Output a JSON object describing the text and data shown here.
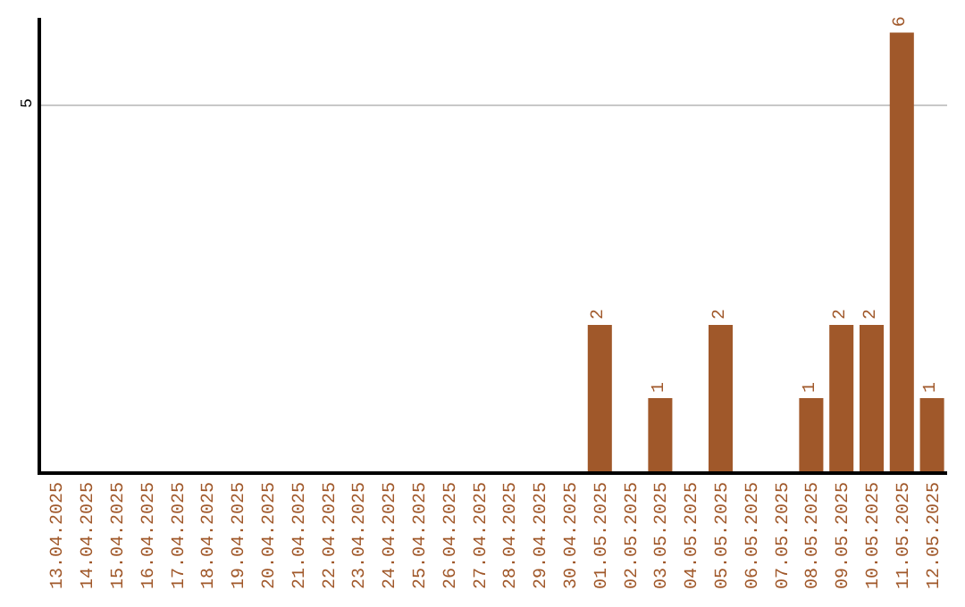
{
  "chart_data": {
    "type": "bar",
    "categories": [
      "13.04.2025",
      "14.04.2025",
      "15.04.2025",
      "16.04.2025",
      "17.04.2025",
      "18.04.2025",
      "19.04.2025",
      "20.04.2025",
      "21.04.2025",
      "22.04.2025",
      "23.04.2025",
      "24.04.2025",
      "25.04.2025",
      "26.04.2025",
      "27.04.2025",
      "28.04.2025",
      "29.04.2025",
      "30.04.2025",
      "01.05.2025",
      "02.05.2025",
      "03.05.2025",
      "04.05.2025",
      "05.05.2025",
      "06.05.2025",
      "07.05.2025",
      "08.05.2025",
      "09.05.2025",
      "10.05.2025",
      "11.05.2025",
      "12.05.2025"
    ],
    "values": [
      null,
      null,
      null,
      null,
      null,
      null,
      null,
      null,
      null,
      null,
      null,
      null,
      null,
      null,
      null,
      null,
      null,
      null,
      2,
      null,
      1,
      null,
      2,
      null,
      null,
      1,
      2,
      2,
      6,
      1
    ],
    "data_labels": true,
    "color": "#a0582a",
    "ylim": [
      0,
      6.2
    ],
    "yticks": [
      5
    ],
    "grid": "y",
    "legend": false
  }
}
